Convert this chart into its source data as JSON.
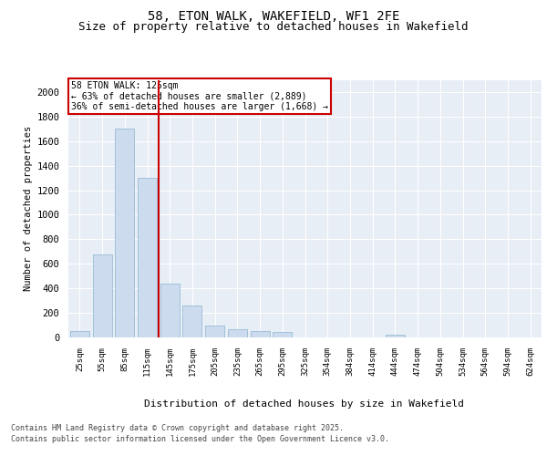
{
  "title1": "58, ETON WALK, WAKEFIELD, WF1 2FE",
  "title2": "Size of property relative to detached houses in Wakefield",
  "xlabel": "Distribution of detached houses by size in Wakefield",
  "ylabel": "Number of detached properties",
  "categories": [
    "25sqm",
    "55sqm",
    "85sqm",
    "115sqm",
    "145sqm",
    "175sqm",
    "205sqm",
    "235sqm",
    "265sqm",
    "295sqm",
    "325sqm",
    "354sqm",
    "384sqm",
    "414sqm",
    "444sqm",
    "474sqm",
    "504sqm",
    "534sqm",
    "564sqm",
    "594sqm",
    "624sqm"
  ],
  "values": [
    50,
    680,
    1700,
    1300,
    440,
    260,
    100,
    70,
    55,
    45,
    0,
    0,
    0,
    0,
    25,
    0,
    0,
    0,
    0,
    0,
    0
  ],
  "bar_color": "#ccdcee",
  "bar_edge_color": "#8ab4d0",
  "vline_x": 3.5,
  "vline_color": "#cc0000",
  "annotation_text": "58 ETON WALK: 125sqm\n← 63% of detached houses are smaller (2,889)\n36% of semi-detached houses are larger (1,668) →",
  "annotation_box_edgecolor": "#cc0000",
  "ylim": [
    0,
    2100
  ],
  "yticks": [
    0,
    200,
    400,
    600,
    800,
    1000,
    1200,
    1400,
    1600,
    1800,
    2000
  ],
  "footer1": "Contains HM Land Registry data © Crown copyright and database right 2025.",
  "footer2": "Contains public sector information licensed under the Open Government Licence v3.0.",
  "bg_color": "#e8eef5",
  "grid_color": "#ffffff",
  "title_fontsize": 10,
  "subtitle_fontsize": 9
}
